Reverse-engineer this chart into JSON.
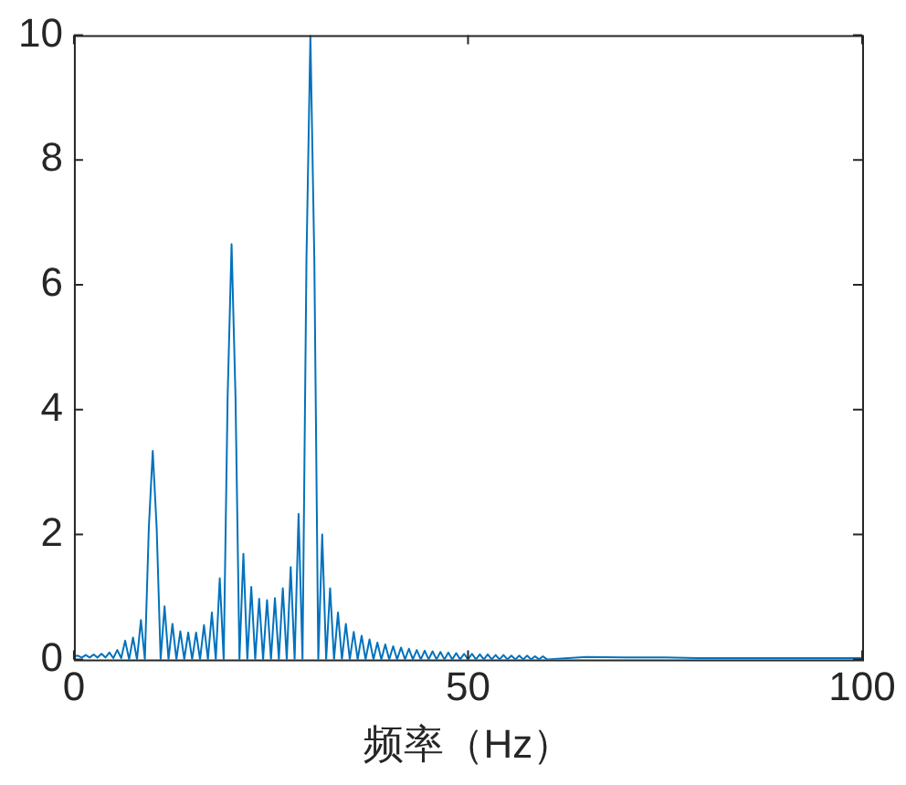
{
  "chart_data": {
    "type": "line",
    "xlabel": "频率（Hz）",
    "x": [
      0,
      0.5,
      1,
      1.5,
      2,
      2.5,
      3,
      3.5,
      4,
      4.5,
      5,
      5.5,
      6,
      6.5,
      7,
      7.5,
      8,
      8.5,
      9,
      9.5,
      10,
      10.5,
      11,
      11.5,
      12,
      12.5,
      13,
      13.5,
      14,
      14.5,
      15,
      15.5,
      16,
      16.5,
      17,
      17.5,
      18,
      18.5,
      19,
      19.5,
      20,
      20.5,
      21,
      21.5,
      22,
      22.5,
      23,
      23.5,
      24,
      24.5,
      25,
      25.5,
      26,
      26.5,
      27,
      27.5,
      28,
      28.5,
      29,
      29.5,
      30,
      30.5,
      31,
      31.5,
      32,
      32.5,
      33,
      33.5,
      34,
      34.5,
      35,
      35.5,
      36,
      36.5,
      37,
      37.5,
      38,
      38.5,
      39,
      39.5,
      40,
      40.5,
      41,
      41.5,
      42,
      42.5,
      43,
      43.5,
      44,
      44.5,
      45,
      45.5,
      46,
      46.5,
      47,
      47.5,
      48,
      48.5,
      49,
      49.5,
      50,
      50.5,
      51,
      51.5,
      52,
      52.5,
      53,
      53.5,
      54,
      54.5,
      55,
      55.5,
      56,
      56.5,
      57,
      57.5,
      58,
      58.5,
      59,
      59.5,
      60,
      65,
      70,
      75,
      80,
      85,
      90,
      95,
      100
    ],
    "series": [
      {
        "color": "#0072bd",
        "values": [
          0.05,
          0.06,
          0.03,
          0.07,
          0.03,
          0.08,
          0.03,
          0.09,
          0.03,
          0.11,
          0.02,
          0.15,
          0.02,
          0.3,
          0,
          0.35,
          0,
          0.63,
          0,
          2.1,
          3.34,
          2.1,
          0,
          0.85,
          0,
          0.57,
          0,
          0.45,
          0,
          0.43,
          0,
          0.43,
          0,
          0.55,
          0,
          0.75,
          0,
          1.3,
          0,
          4.2,
          6.65,
          4.2,
          0,
          1.69,
          0,
          1.16,
          0,
          0.97,
          0,
          0.95,
          0,
          0.98,
          0,
          1.14,
          0,
          1.48,
          0,
          2.33,
          0,
          6.4,
          10,
          6.4,
          0,
          2.0,
          0,
          1.14,
          0,
          0.75,
          0,
          0.57,
          0,
          0.44,
          0,
          0.38,
          0,
          0.32,
          0,
          0.27,
          0,
          0.24,
          0,
          0.21,
          0,
          0.19,
          0,
          0.17,
          0,
          0.15,
          0,
          0.14,
          0,
          0.13,
          0,
          0.12,
          0,
          0.11,
          0,
          0.1,
          0,
          0.09,
          0,
          0.09,
          0,
          0.08,
          0,
          0.08,
          0,
          0.07,
          0,
          0.07,
          0,
          0.06,
          0,
          0.06,
          0,
          0.06,
          0,
          0.05,
          0,
          0.05,
          0,
          0.04,
          0.03,
          0.03,
          0.02,
          0.02,
          0.02,
          0.02,
          0.02
        ]
      }
    ],
    "xlim": [
      0,
      100
    ],
    "xticks": [
      0,
      50,
      100
    ],
    "ylim": [
      0,
      10
    ],
    "yticks": [
      0,
      2,
      4,
      6,
      8,
      10
    ],
    "grid": false,
    "legend": false,
    "marker": "none",
    "line_style": "solid"
  }
}
